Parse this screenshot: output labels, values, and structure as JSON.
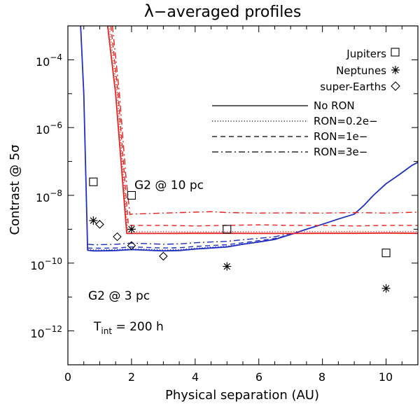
{
  "chart_data": {
    "type": "line",
    "title": "λ−averaged profiles",
    "title_symbol": "λ",
    "title_rest": "−averaged profiles",
    "xlabel": "Physical separation (AU)",
    "ylabel_text": "Contrast @ 5",
    "ylabel_symbol": "σ",
    "xlim": [
      0,
      11
    ],
    "ylim_log10": [
      -13,
      -3
    ],
    "x_ticks": [
      0,
      2,
      4,
      6,
      8,
      10
    ],
    "x_tick_labels": [
      "0",
      "2",
      "4",
      "6",
      "8",
      "10"
    ],
    "y_tick_exponents": [
      -4,
      -6,
      -8,
      -10,
      -12
    ],
    "y_tick_labels": [
      {
        "base": "10",
        "exp": "−4"
      },
      {
        "base": "10",
        "exp": "−6"
      },
      {
        "base": "10",
        "exp": "−8"
      },
      {
        "base": "10",
        "exp": "−10"
      },
      {
        "base": "10",
        "exp": "−12"
      }
    ],
    "colors": {
      "g2_3pc": "#1f2fbf",
      "g2_10pc": "#e8201e",
      "axis": "#000000"
    },
    "series": [
      {
        "name": "G2 @ 3 pc, No RON",
        "color": "#1f2fbf",
        "dash": "solid",
        "x": [
          0.4,
          0.5,
          0.62,
          0.8,
          1.0,
          1.5,
          2.0,
          2.5,
          3.0,
          3.5,
          4.0,
          4.5,
          5.0,
          5.5,
          6.0,
          6.5,
          7.0,
          7.5,
          8.0,
          8.5,
          9.0,
          9.3,
          9.6,
          10.0,
          10.4,
          10.8,
          11.0
        ],
        "y": [
          0.001,
          1e-05,
          2.4e-10,
          2.3e-10,
          2.3e-10,
          2.35e-10,
          2.5e-10,
          2.4e-10,
          2.3e-10,
          2.35e-10,
          2.6e-10,
          2.8e-10,
          3e-10,
          3.6e-10,
          4.2e-10,
          5e-10,
          7e-10,
          1e-09,
          1.4e-09,
          2e-09,
          2.8e-09,
          5e-09,
          1e-08,
          2.2e-08,
          4e-08,
          7.5e-08,
          9.5e-08
        ]
      },
      {
        "name": "G2 @ 3 pc, RON=0.2e−",
        "color": "#1f2fbf",
        "dash": "dotted",
        "x": [
          0.62,
          0.8,
          1.0,
          1.5,
          2.0,
          2.5,
          3.0,
          3.5,
          4.0,
          4.5,
          5.0,
          5.5,
          6.0,
          6.5,
          7.0
        ],
        "y": [
          2.5e-10,
          2.45e-10,
          2.45e-10,
          2.5e-10,
          2.65e-10,
          2.55e-10,
          2.45e-10,
          2.5e-10,
          2.75e-10,
          2.95e-10,
          3.15e-10,
          3.7e-10,
          4.3e-10,
          5.1e-10,
          7e-10
        ]
      },
      {
        "name": "G2 @ 3 pc, RON=1e−",
        "color": "#1f2fbf",
        "dash": "dashed",
        "x": [
          0.62,
          0.8,
          1.0,
          1.5,
          2.0,
          2.5,
          3.0,
          3.5,
          4.0,
          4.5,
          5.0,
          5.5,
          6.0,
          6.5,
          7.0
        ],
        "y": [
          2.8e-10,
          2.75e-10,
          2.75e-10,
          2.8e-10,
          3e-10,
          2.9e-10,
          2.8e-10,
          2.85e-10,
          3.1e-10,
          3.3e-10,
          3.5e-10,
          4e-10,
          4.6e-10,
          5.3e-10,
          7e-10
        ]
      },
      {
        "name": "G2 @ 3 pc, RON=3e−",
        "color": "#1f2fbf",
        "dash": "dashdot",
        "x": [
          0.62,
          0.8,
          1.0,
          1.5,
          2.0,
          2.5,
          3.0,
          3.5,
          4.0,
          4.5,
          5.0,
          5.5,
          6.0,
          6.5,
          7.0
        ],
        "y": [
          3.6e-10,
          3.5e-10,
          3.5e-10,
          3.6e-10,
          3.9e-10,
          3.75e-10,
          3.6e-10,
          3.7e-10,
          4e-10,
          4.2e-10,
          4.4e-10,
          4.9e-10,
          5.4e-10,
          6e-10,
          7.5e-10
        ]
      },
      {
        "name": "G2 @ 10 pc, No RON",
        "color": "#e8201e",
        "dash": "solid",
        "x": [
          1.25,
          1.5,
          1.72,
          1.85,
          2.0,
          3.0,
          4.0,
          5.0,
          6.0,
          7.0,
          8.0,
          9.0,
          10.0,
          11.0
        ],
        "y": [
          0.001,
          1e-05,
          2.5e-08,
          7.5e-10,
          7.5e-10,
          7.5e-10,
          7.6e-10,
          7.6e-10,
          7.5e-10,
          7.5e-10,
          7.6e-10,
          7.6e-10,
          7.7e-10,
          7.6e-10
        ]
      },
      {
        "name": "G2 @ 10 pc, RON=0.2e−",
        "color": "#e8201e",
        "dash": "dotted",
        "x": [
          1.3,
          1.55,
          1.75,
          1.88,
          2.0,
          3.0,
          4.0,
          5.0,
          6.0,
          7.0,
          8.0,
          9.0,
          10.0,
          11.0
        ],
        "y": [
          0.001,
          1e-05,
          3e-08,
          8.4e-10,
          8.4e-10,
          8.5e-10,
          8.4e-10,
          8.5e-10,
          8.4e-10,
          8.5e-10,
          8.5e-10,
          8.6e-10,
          8.5e-10,
          8.6e-10
        ]
      },
      {
        "name": "G2 @ 10 pc, RON=1e−",
        "color": "#e8201e",
        "dash": "dashed",
        "x": [
          1.35,
          1.58,
          1.78,
          1.9,
          2.0,
          3.0,
          4.0,
          5.0,
          6.0,
          7.0,
          8.0,
          9.0,
          10.0,
          11.0
        ],
        "y": [
          0.001,
          1e-05,
          3.5e-08,
          1.3e-09,
          1.3e-09,
          1.3e-09,
          1.25e-09,
          1.3e-09,
          1.35e-09,
          1.3e-09,
          1.3e-09,
          1.25e-09,
          1.3e-09,
          1.3e-09
        ]
      },
      {
        "name": "G2 @ 10 pc, RON=3e−",
        "color": "#e8201e",
        "dash": "dashdot",
        "x": [
          1.4,
          1.62,
          1.82,
          1.95,
          2.0,
          3.0,
          4.0,
          4.5,
          5.0,
          6.0,
          7.0,
          8.0,
          9.0,
          10.0,
          11.0
        ],
        "y": [
          0.001,
          1e-05,
          4e-08,
          2.7e-09,
          2.8e-09,
          3e-09,
          3.2e-09,
          3.3e-09,
          3.1e-09,
          3e-09,
          3.05e-09,
          3e-09,
          3.1e-09,
          3e-09,
          3.2e-09
        ]
      }
    ],
    "points": [
      {
        "name": "Jupiters",
        "marker": "square",
        "x": [
          0.8,
          2.0,
          5.0,
          10.0
        ],
        "y": [
          2.5e-08,
          1e-08,
          1e-09,
          2e-10
        ]
      },
      {
        "name": "Neptunes",
        "marker": "asterisk",
        "x": [
          0.8,
          2.0,
          5.0,
          10.0
        ],
        "y": [
          1.8e-09,
          1e-09,
          8e-11,
          1.8e-11
        ]
      },
      {
        "name": "super-Earths",
        "marker": "diamond",
        "x": [
          1.0,
          1.55,
          2.0,
          3.0
        ],
        "y": [
          1.4e-09,
          6e-10,
          3.3e-10,
          1.6e-10
        ]
      }
    ],
    "legend_markers": [
      {
        "label": "Jupiters",
        "marker": "square"
      },
      {
        "label": "Neptunes",
        "marker": "asterisk"
      },
      {
        "label": "super-Earths",
        "marker": "diamond"
      }
    ],
    "legend_lines": [
      {
        "label": "No RON",
        "dash": "solid"
      },
      {
        "label": "RON=0.2e−",
        "dash": "dotted"
      },
      {
        "label": "RON=1e−",
        "dash": "dashed"
      },
      {
        "label": "RON=3e−",
        "dash": "dashdot"
      }
    ],
    "annotations": {
      "g2_10pc": "G2 @ 10 pc",
      "g2_3pc": "G2 @ 3 pc",
      "tint_T": "T",
      "tint_sub": "int",
      "tint_rest": " = 200 h"
    }
  }
}
